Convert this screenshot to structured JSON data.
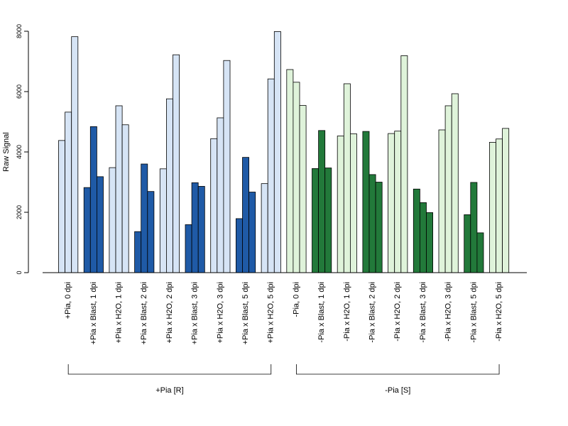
{
  "chart_data": {
    "type": "bar",
    "ylabel": "Raw Signal",
    "ylim": [
      0,
      8000
    ],
    "yticks": [
      0,
      2000,
      4000,
      6000,
      8000
    ],
    "grid": false,
    "replicates_per_category": 3,
    "categories": [
      "+Pia, 0 dpi",
      "+Pia x Blast, 1 dpi",
      "+Pia x H2O, 1 dpi",
      "+Pia x Blast, 2 dpi",
      "+Pia x H2O, 2 dpi",
      "+Pia x Blast, 3 dpi",
      "+Pia x H2O, 3 dpi",
      "+Pia x Blast, 5 dpi",
      "+Pia x H2O, 5 dpi",
      "-Pia, 0 dpi",
      "-Pia x Blast, 1 dpi",
      "-Pia x H2O, 1 dpi",
      "-Pia x Blast, 2 dpi",
      "-Pia x H2O, 2 dpi",
      "-Pia x Blast, 3 dpi",
      "-Pia x H2O, 3 dpi",
      "-Pia x Blast, 5 dpi",
      "-Pia x H2O, 5 dpi"
    ],
    "values": [
      [
        4380,
        5320,
        7820
      ],
      [
        2820,
        4840,
        3180
      ],
      [
        3480,
        5530,
        4900
      ],
      [
        1360,
        3600,
        2690
      ],
      [
        3440,
        5760,
        7220
      ],
      [
        1590,
        2980,
        2860
      ],
      [
        4440,
        5130,
        7030
      ],
      [
        1790,
        3820,
        2670
      ],
      [
        2950,
        6420,
        7990
      ],
      [
        6730,
        6310,
        5540
      ],
      [
        3450,
        4710,
        3470
      ],
      [
        4530,
        6260,
        4600
      ],
      [
        4680,
        3250,
        3000
      ],
      [
        4610,
        4690,
        7190
      ],
      [
        2770,
        2320,
        1990
      ],
      [
        4730,
        5530,
        5930
      ],
      [
        1920,
        2990,
        1320
      ],
      [
        4320,
        4430,
        4780
      ]
    ],
    "colors": [
      "#d6e4f5",
      "#1f5aa6",
      "#dff3da",
      "#22793a"
    ],
    "category_color_index": [
      0,
      1,
      0,
      1,
      0,
      1,
      0,
      1,
      0,
      2,
      3,
      2,
      3,
      2,
      3,
      2,
      3,
      2
    ],
    "groups": [
      {
        "label": "+Pia [R]",
        "first": 0,
        "last": 8
      },
      {
        "label": "-Pia [S]",
        "first": 9,
        "last": 17
      }
    ]
  }
}
